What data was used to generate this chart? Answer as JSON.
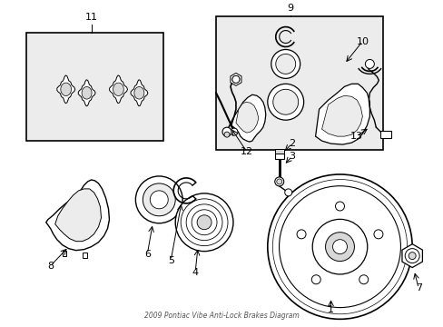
{
  "bg_color": "#ffffff",
  "line_color": "#000000",
  "gray_fill": "#d8d8d8",
  "light_gray": "#ececec",
  "fig_width": 4.89,
  "fig_height": 3.6,
  "dpi": 100
}
